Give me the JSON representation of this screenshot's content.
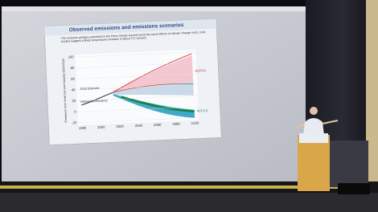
{
  "slide": {
    "title": "Observed emissions and emissions scenarios",
    "subtitle": "The emission pledges submitted to the Paris climate summit avoid the worst effects of climate change (red), most studies suggest a likely temperature increase of about 3°C (brown)",
    "y_axis_label": "Emissions from fossil fuel and industry (GtCO2/yr)",
    "y_ticks": [
      "100",
      "80",
      "60",
      "40",
      "20",
      "0",
      "-20"
    ],
    "x_ticks": [
      "1980",
      "2000",
      "2020",
      "2040",
      "2060",
      "2080",
      "2100"
    ],
    "labels": [
      "2016 Estimate",
      "Historical emissions",
      "RCP8.5",
      "RCP2.6"
    ]
  }
}
